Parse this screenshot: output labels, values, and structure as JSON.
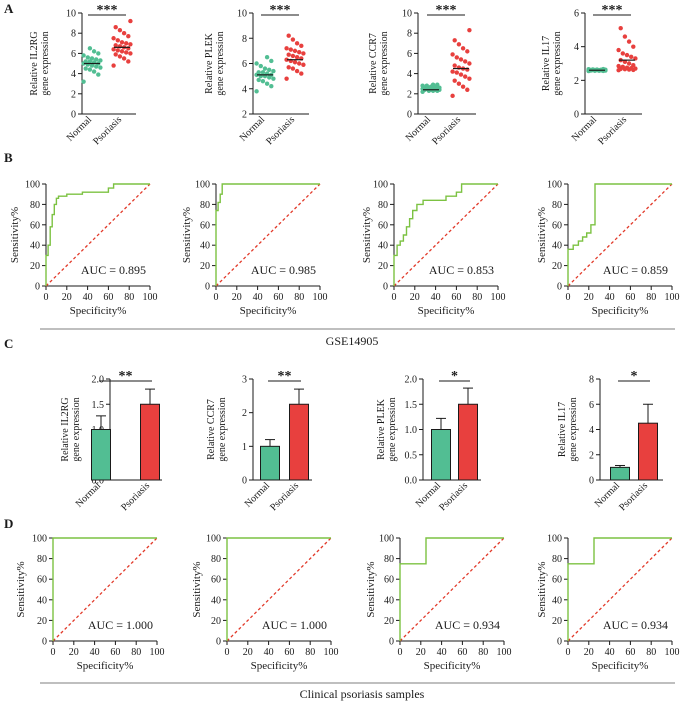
{
  "colors": {
    "normal": "#52be93",
    "psoriasis": "#e8403e",
    "roc": "#7cc242",
    "diagonal": "#e23a2a",
    "axis": "#1a1a1a"
  },
  "panels": {
    "A": {
      "label": "A"
    },
    "B": {
      "label": "B",
      "caption": "GSE14905"
    },
    "C": {
      "label": "C"
    },
    "D": {
      "label": "D",
      "caption": "Clinical psoriasis samples"
    }
  },
  "chart_data": [
    {
      "id": "A1",
      "type": "scatter",
      "title": "",
      "significance": "***",
      "ylabel": [
        "Relative IL2RG",
        "gene expression"
      ],
      "ylim": [
        0,
        10
      ],
      "yticks": [
        "0",
        "2",
        "4",
        "6",
        "8",
        "10"
      ],
      "categories": [
        "Normal",
        "Psoriasis"
      ],
      "series": [
        {
          "name": "Normal",
          "mean": 5.0,
          "values": [
            3.2,
            3.9,
            4.2,
            4.4,
            4.5,
            4.6,
            4.7,
            4.8,
            4.9,
            5.0,
            5.0,
            5.1,
            5.2,
            5.2,
            5.3,
            5.4,
            5.5,
            5.6,
            5.8,
            6.0,
            6.2,
            6.5
          ]
        },
        {
          "name": "Psoriasis",
          "mean": 6.6,
          "values": [
            4.8,
            5.2,
            5.5,
            5.7,
            5.9,
            6.0,
            6.1,
            6.2,
            6.3,
            6.4,
            6.5,
            6.6,
            6.7,
            6.8,
            6.9,
            7.0,
            7.1,
            7.3,
            7.5,
            7.7,
            8.0,
            8.3,
            8.6,
            9.2
          ]
        }
      ]
    },
    {
      "id": "A2",
      "type": "scatter",
      "title": "",
      "significance": "***",
      "ylabel": [
        "Relative PLEK",
        "gene expression"
      ],
      "ylim": [
        2,
        10
      ],
      "yticks": [
        "2",
        "4",
        "6",
        "8",
        "10"
      ],
      "categories": [
        "Normal",
        "Psoriasis"
      ],
      "series": [
        {
          "name": "Normal",
          "mean": 5.1,
          "values": [
            3.8,
            4.2,
            4.4,
            4.6,
            4.7,
            4.8,
            4.9,
            5.0,
            5.0,
            5.1,
            5.1,
            5.2,
            5.3,
            5.3,
            5.4,
            5.5,
            5.6,
            5.8,
            6.0,
            6.2,
            6.5
          ]
        },
        {
          "name": "Psoriasis",
          "mean": 6.3,
          "values": [
            4.8,
            5.2,
            5.4,
            5.6,
            5.7,
            5.9,
            6.0,
            6.1,
            6.2,
            6.3,
            6.4,
            6.5,
            6.6,
            6.7,
            6.8,
            6.9,
            7.0,
            7.1,
            7.2,
            7.4,
            7.6,
            7.9,
            8.2
          ]
        }
      ]
    },
    {
      "id": "A3",
      "type": "scatter",
      "title": "",
      "significance": "***",
      "ylabel": [
        "Relative CCR7",
        "gene expression"
      ],
      "ylim": [
        0,
        10
      ],
      "yticks": [
        "0",
        "2",
        "4",
        "6",
        "8",
        "10"
      ],
      "categories": [
        "Normal",
        "Psoriasis"
      ],
      "series": [
        {
          "name": "Normal",
          "mean": 2.4,
          "values": [
            2.2,
            2.3,
            2.3,
            2.3,
            2.4,
            2.4,
            2.4,
            2.4,
            2.5,
            2.5,
            2.5,
            2.5,
            2.6,
            2.6,
            2.6,
            2.7,
            2.7,
            2.8,
            2.8,
            2.9,
            2.9
          ]
        },
        {
          "name": "Psoriasis",
          "mean": 4.5,
          "values": [
            1.8,
            2.4,
            2.7,
            3.0,
            3.3,
            3.5,
            3.7,
            3.9,
            4.1,
            4.2,
            4.4,
            4.5,
            4.6,
            4.8,
            5.0,
            5.2,
            5.4,
            5.6,
            5.9,
            6.2,
            6.5,
            6.9,
            7.3,
            8.3
          ]
        }
      ]
    },
    {
      "id": "A4",
      "type": "scatter",
      "title": "",
      "significance": "***",
      "ylabel": [
        "Relative IL17",
        "gene expression"
      ],
      "ylim": [
        0,
        6
      ],
      "yticks": [
        "0",
        "2",
        "4",
        "6"
      ],
      "categories": [
        "Normal",
        "Psoriasis"
      ],
      "series": [
        {
          "name": "Normal",
          "mean": 2.6,
          "values": [
            2.55,
            2.56,
            2.57,
            2.57,
            2.58,
            2.58,
            2.59,
            2.6,
            2.6,
            2.6,
            2.61,
            2.61,
            2.62,
            2.62,
            2.63,
            2.63,
            2.64,
            2.65,
            2.66,
            2.67
          ]
        },
        {
          "name": "Psoriasis",
          "mean": 3.2,
          "values": [
            2.6,
            2.62,
            2.64,
            2.66,
            2.68,
            2.7,
            2.72,
            2.75,
            2.8,
            2.85,
            2.9,
            3.0,
            3.1,
            3.2,
            3.3,
            3.4,
            3.5,
            3.6,
            3.8,
            4.0,
            4.3,
            4.6,
            5.1
          ]
        }
      ]
    },
    {
      "id": "B1",
      "type": "line",
      "title": "",
      "xlabel": "Specificity%",
      "ylabel": "Sensitivity%",
      "xlim": [
        0,
        100
      ],
      "ylim": [
        0,
        100
      ],
      "xticks": [
        "0",
        "20",
        "40",
        "60",
        "80",
        "100"
      ],
      "yticks": [
        "0",
        "20",
        "40",
        "60",
        "80",
        "100"
      ],
      "annotation": "AUC = 0.895",
      "x": [
        0,
        0,
        2,
        2,
        4,
        4,
        6,
        6,
        8,
        8,
        10,
        10,
        12,
        12,
        20,
        20,
        35,
        35,
        60,
        60,
        65,
        65,
        100
      ],
      "y": [
        0,
        30,
        30,
        40,
        40,
        58,
        58,
        70,
        70,
        80,
        80,
        86,
        86,
        88,
        88,
        90,
        90,
        92,
        92,
        96,
        96,
        100,
        100
      ]
    },
    {
      "id": "B2",
      "type": "line",
      "title": "",
      "xlabel": "Specificity%",
      "ylabel": "Sensitivity%",
      "xlim": [
        0,
        100
      ],
      "ylim": [
        0,
        100
      ],
      "xticks": [
        "0",
        "20",
        "40",
        "60",
        "80",
        "100"
      ],
      "yticks": [
        "0",
        "20",
        "40",
        "60",
        "80",
        "100"
      ],
      "annotation": "AUC = 0.985",
      "x": [
        0,
        0,
        2,
        2,
        4,
        4,
        6,
        6,
        100
      ],
      "y": [
        0,
        74,
        74,
        82,
        82,
        90,
        90,
        100,
        100
      ]
    },
    {
      "id": "B3",
      "type": "line",
      "title": "",
      "xlabel": "Specificity%",
      "ylabel": "Sensitivity%",
      "xlim": [
        0,
        100
      ],
      "ylim": [
        0,
        100
      ],
      "xticks": [
        "0",
        "20",
        "40",
        "60",
        "80",
        "100"
      ],
      "yticks": [
        "0",
        "20",
        "40",
        "60",
        "80",
        "100"
      ],
      "annotation": "AUC = 0.853",
      "x": [
        0,
        0,
        3,
        3,
        6,
        6,
        9,
        9,
        12,
        12,
        15,
        15,
        18,
        18,
        22,
        22,
        28,
        28,
        50,
        50,
        60,
        60,
        65,
        65,
        100
      ],
      "y": [
        0,
        30,
        30,
        40,
        40,
        44,
        44,
        50,
        50,
        58,
        58,
        66,
        66,
        74,
        74,
        80,
        80,
        84,
        84,
        88,
        88,
        92,
        92,
        100,
        100
      ]
    },
    {
      "id": "B4",
      "type": "line",
      "title": "",
      "xlabel": "Specificity%",
      "ylabel": "Sensitivity%",
      "xlim": [
        0,
        100
      ],
      "ylim": [
        0,
        100
      ],
      "xticks": [
        "0",
        "20",
        "40",
        "60",
        "80",
        "100"
      ],
      "yticks": [
        "0",
        "20",
        "40",
        "60",
        "80",
        "100"
      ],
      "annotation": "AUC = 0.859",
      "x": [
        0,
        0,
        5,
        5,
        10,
        10,
        14,
        14,
        18,
        18,
        22,
        22,
        26,
        26,
        100
      ],
      "y": [
        0,
        36,
        36,
        40,
        40,
        44,
        44,
        48,
        48,
        52,
        52,
        60,
        60,
        100,
        100
      ]
    },
    {
      "id": "C1",
      "type": "bar",
      "title": "",
      "significance": "**",
      "ylabel": [
        "Relative IL2RG",
        "gene expression"
      ],
      "ylim": [
        0,
        2.0
      ],
      "yticks": [
        "0.0",
        "0.5",
        "1.0",
        "1.5",
        "2.0"
      ],
      "categories": [
        "Normal",
        "Psoriasis"
      ],
      "values": [
        1.0,
        1.5
      ],
      "errors": [
        0.27,
        0.3
      ]
    },
    {
      "id": "C2",
      "type": "bar",
      "title": "",
      "significance": "**",
      "ylabel": [
        "Relative CCR7",
        "gene expression"
      ],
      "ylim": [
        0,
        3
      ],
      "yticks": [
        "0",
        "1",
        "2",
        "3"
      ],
      "categories": [
        "Normal",
        "Psoriasis"
      ],
      "values": [
        1.0,
        2.25
      ],
      "errors": [
        0.2,
        0.45
      ]
    },
    {
      "id": "C3",
      "type": "bar",
      "title": "",
      "significance": "*",
      "ylabel": [
        "Relative PLEK",
        "gene expression"
      ],
      "ylim": [
        0,
        2.0
      ],
      "yticks": [
        "0.0",
        "0.5",
        "1.0",
        "1.5",
        "2.0"
      ],
      "categories": [
        "Normal",
        "Psoriasis"
      ],
      "values": [
        1.0,
        1.5
      ],
      "errors": [
        0.22,
        0.32
      ]
    },
    {
      "id": "C4",
      "type": "bar",
      "title": "",
      "significance": "*",
      "ylabel": [
        "Relative IL17",
        "gene expression"
      ],
      "ylim": [
        0,
        8
      ],
      "yticks": [
        "0",
        "2",
        "4",
        "6",
        "8"
      ],
      "categories": [
        "Normal",
        "Psoriasis"
      ],
      "values": [
        1.0,
        4.5
      ],
      "errors": [
        0.15,
        1.5
      ]
    },
    {
      "id": "D1",
      "type": "line",
      "title": "",
      "xlabel": "Specificity%",
      "ylabel": "Sensitivity%",
      "xlim": [
        0,
        100
      ],
      "ylim": [
        0,
        100
      ],
      "xticks": [
        "0",
        "20",
        "40",
        "60",
        "80",
        "100"
      ],
      "yticks": [
        "0",
        "20",
        "40",
        "60",
        "80",
        "100"
      ],
      "annotation": "AUC = 1.000",
      "x": [
        0,
        0,
        100
      ],
      "y": [
        0,
        100,
        100
      ]
    },
    {
      "id": "D2",
      "type": "line",
      "title": "",
      "xlabel": "Specificity%",
      "ylabel": "Sensitivity%",
      "xlim": [
        0,
        100
      ],
      "ylim": [
        0,
        100
      ],
      "xticks": [
        "0",
        "20",
        "40",
        "60",
        "80",
        "100"
      ],
      "yticks": [
        "0",
        "20",
        "40",
        "60",
        "80",
        "100"
      ],
      "annotation": "AUC = 1.000",
      "x": [
        0,
        0,
        100
      ],
      "y": [
        0,
        100,
        100
      ]
    },
    {
      "id": "D3",
      "type": "line",
      "title": "",
      "xlabel": "Specificity%",
      "ylabel": "Sensitivity%",
      "xlim": [
        0,
        100
      ],
      "ylim": [
        0,
        100
      ],
      "xticks": [
        "0",
        "20",
        "40",
        "60",
        "80",
        "100"
      ],
      "yticks": [
        "0",
        "20",
        "40",
        "60",
        "80",
        "100"
      ],
      "annotation": "AUC = 0.934",
      "x": [
        0,
        0,
        25,
        25,
        100
      ],
      "y": [
        0,
        75,
        75,
        100,
        100
      ]
    },
    {
      "id": "D4",
      "type": "line",
      "title": "",
      "xlabel": "Specificity%",
      "ylabel": "Sensitivity%",
      "xlim": [
        0,
        100
      ],
      "ylim": [
        0,
        100
      ],
      "xticks": [
        "0",
        "20",
        "40",
        "60",
        "80",
        "100"
      ],
      "yticks": [
        "0",
        "20",
        "40",
        "60",
        "80",
        "100"
      ],
      "annotation": "AUC = 0.934",
      "x": [
        0,
        0,
        25,
        25,
        100
      ],
      "y": [
        0,
        75,
        75,
        100,
        100
      ]
    }
  ]
}
